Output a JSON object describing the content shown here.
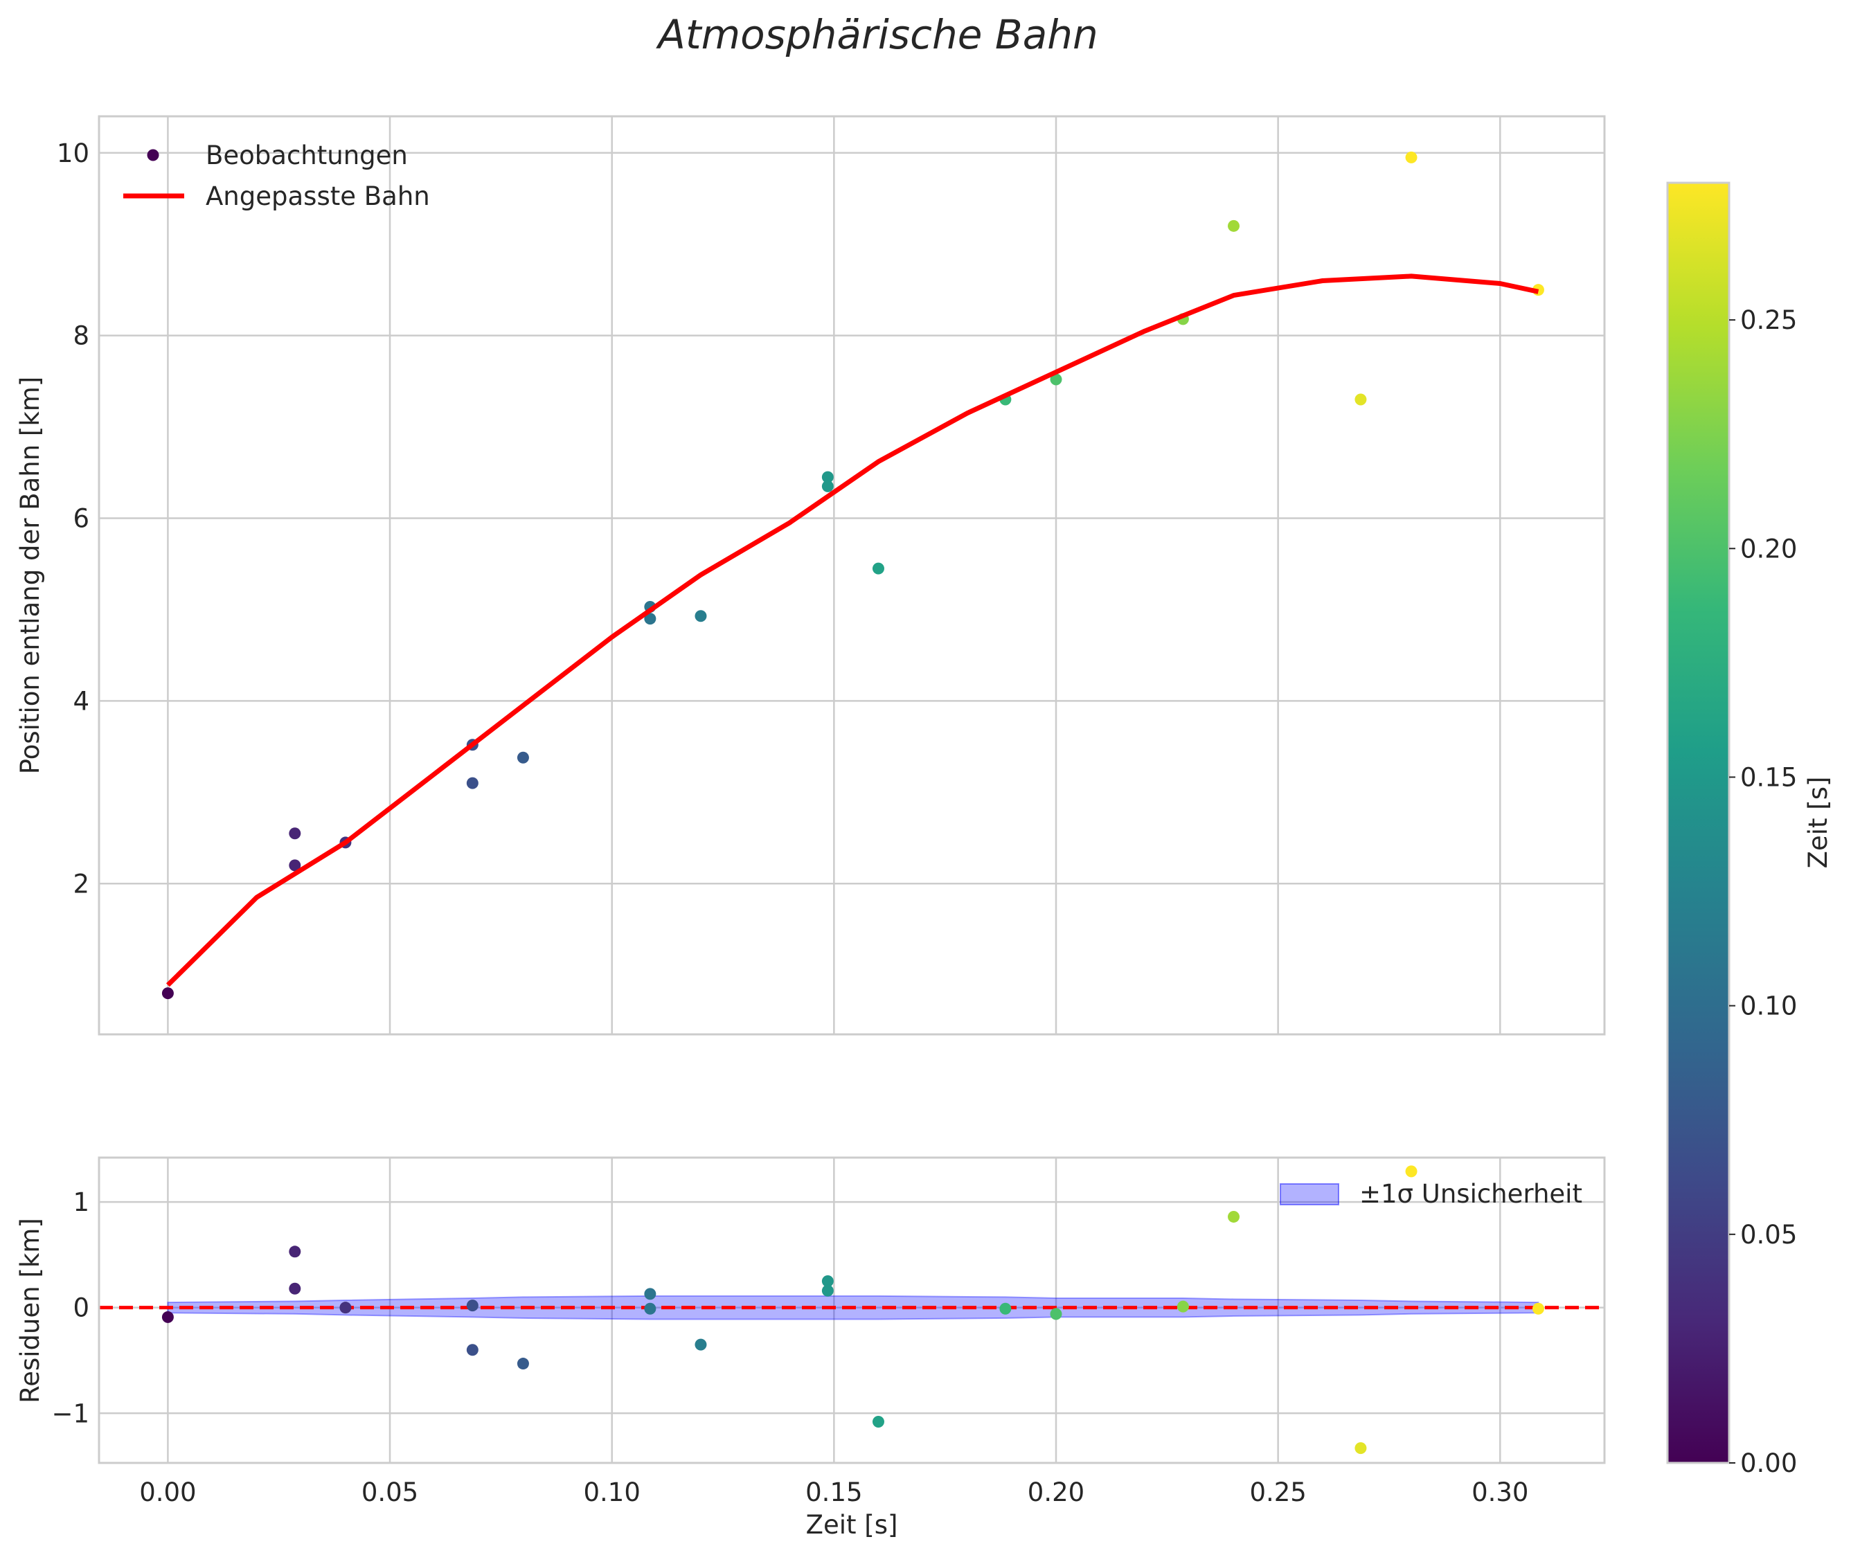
{
  "chart_data": [
    {
      "type": "line+scatter",
      "panel": "top",
      "title": "Atmosphärische Bahn",
      "xlabel": "",
      "ylabel": "Position entlang der Bahn [km]",
      "xlim": [
        -0.0155,
        0.3235
      ],
      "ylim": [
        0.35,
        10.4
      ],
      "xticks": [
        0.0,
        0.05,
        0.1,
        0.15,
        0.2,
        0.25,
        0.3
      ],
      "yticks": [
        2,
        4,
        6,
        8,
        10
      ],
      "ytick_labels": [
        "2",
        "4",
        "6",
        "8",
        "10"
      ],
      "grid": true,
      "legend": {
        "position": "upper left",
        "entries": [
          {
            "label": "Beobachtungen",
            "kind": "marker"
          },
          {
            "label": "Angepasste Bahn",
            "kind": "line",
            "color": "#ff0000"
          }
        ]
      },
      "series": [
        {
          "name": "Beobachtungen",
          "kind": "scatter",
          "colormap": "viridis",
          "x": [
            0.0,
            0.0286,
            0.0286,
            0.04,
            0.0686,
            0.0686,
            0.08,
            0.1086,
            0.1086,
            0.12,
            0.1486,
            0.1486,
            0.16,
            0.1886,
            0.2,
            0.2286,
            0.24,
            0.2686,
            0.28,
            0.3086
          ],
          "y": [
            0.8,
            2.2,
            2.55,
            2.45,
            3.1,
            3.52,
            3.38,
            5.03,
            4.9,
            4.93,
            6.45,
            6.35,
            5.45,
            7.3,
            7.52,
            8.18,
            9.2,
            7.3,
            9.95,
            8.5
          ]
        },
        {
          "name": "Angepasste Bahn",
          "kind": "line",
          "color": "#ff0000",
          "x": [
            0.0,
            0.02,
            0.04,
            0.06,
            0.08,
            0.1,
            0.12,
            0.14,
            0.16,
            0.18,
            0.2,
            0.22,
            0.24,
            0.26,
            0.28,
            0.3,
            0.3086
          ],
          "y": [
            0.89,
            1.85,
            2.45,
            3.2,
            3.95,
            4.7,
            5.38,
            5.95,
            6.62,
            7.15,
            7.6,
            8.05,
            8.44,
            8.6,
            8.65,
            8.57,
            8.48
          ]
        }
      ]
    },
    {
      "type": "scatter+band",
      "panel": "bottom",
      "xlabel": "Zeit [s]",
      "ylabel": "Residuen [km]",
      "xlim": [
        -0.0155,
        0.3235
      ],
      "ylim": [
        -1.47,
        1.42
      ],
      "xticks": [
        0.0,
        0.05,
        0.1,
        0.15,
        0.2,
        0.25,
        0.3
      ],
      "xtick_labels": [
        "0.00",
        "0.05",
        "0.10",
        "0.15",
        "0.20",
        "0.25",
        "0.30"
      ],
      "yticks": [
        -1,
        0,
        1
      ],
      "ytick_labels": [
        "−1",
        "0",
        "1"
      ],
      "grid": true,
      "legend": {
        "position": "upper right",
        "entries": [
          {
            "label": "±1σ Unsicherheit",
            "kind": "patch",
            "color": "#0000ff",
            "alpha": 0.3
          }
        ]
      },
      "zero_line": {
        "y": 0,
        "style": "dashed",
        "color": "#ff0000"
      },
      "band": {
        "x": [
          0.0,
          0.0286,
          0.04,
          0.0686,
          0.08,
          0.1086,
          0.12,
          0.1486,
          0.16,
          0.1886,
          0.2,
          0.2286,
          0.24,
          0.2686,
          0.28,
          0.3086
        ],
        "sigma": [
          0.05,
          0.06,
          0.07,
          0.09,
          0.1,
          0.11,
          0.11,
          0.11,
          0.11,
          0.1,
          0.09,
          0.09,
          0.08,
          0.07,
          0.06,
          0.05
        ]
      },
      "series": [
        {
          "name": "Residuen",
          "kind": "scatter",
          "colormap": "viridis",
          "x": [
            0.0,
            0.0286,
            0.0286,
            0.04,
            0.0686,
            0.0686,
            0.08,
            0.1086,
            0.1086,
            0.12,
            0.1486,
            0.1486,
            0.16,
            0.1886,
            0.2,
            0.2286,
            0.24,
            0.2686,
            0.28,
            0.3086
          ],
          "y": [
            -0.09,
            0.18,
            0.53,
            0.0,
            -0.4,
            0.02,
            -0.53,
            0.13,
            -0.01,
            -0.35,
            0.25,
            0.16,
            -1.08,
            -0.01,
            -0.06,
            0.01,
            0.86,
            -1.33,
            1.29,
            -0.01
          ]
        }
      ]
    },
    {
      "type": "colorbar",
      "label": "Zeit [s]",
      "colormap": "viridis",
      "range": [
        0.0,
        0.28
      ],
      "ticks": [
        0.0,
        0.05,
        0.1,
        0.15,
        0.2,
        0.25
      ],
      "tick_labels": [
        "0.00",
        "0.05",
        "0.10",
        "0.15",
        "0.20",
        "0.25"
      ]
    }
  ]
}
